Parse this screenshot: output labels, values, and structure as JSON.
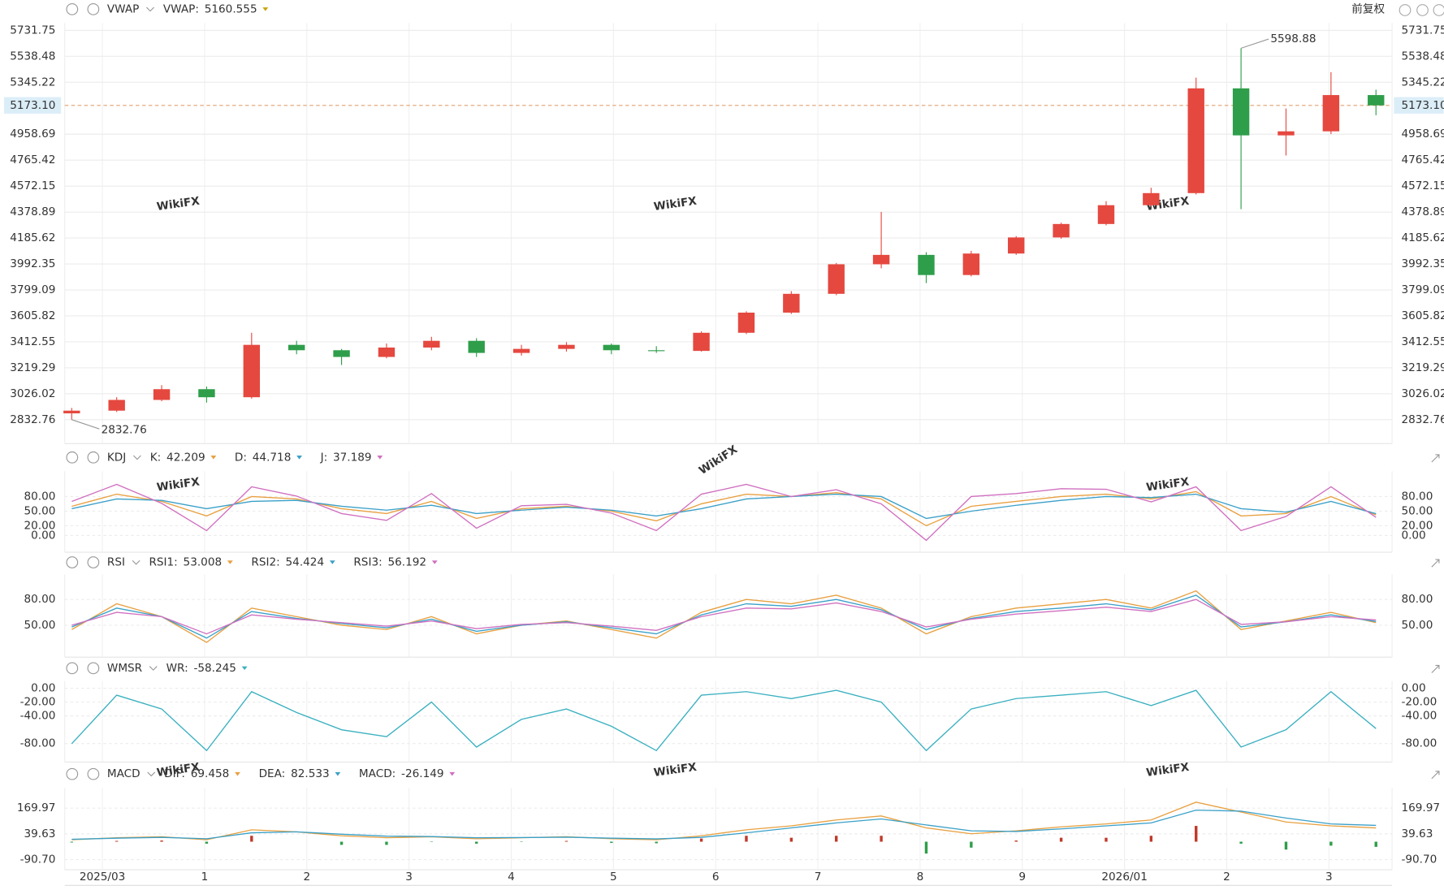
{
  "chart_data": [
    {
      "type": "candlestick",
      "title": "VWAP",
      "adjust_label": "前复权",
      "watermark": "WikiFX",
      "legend": [
        {
          "name": "VWAP:",
          "value": 5160.555,
          "color": "#c9a400"
        }
      ],
      "x": [
        -0.3,
        0.14,
        0.58,
        1.02,
        1.46,
        1.9,
        2.34,
        2.78,
        3.22,
        3.66,
        4.1,
        4.54,
        4.98,
        5.42,
        5.86,
        6.3,
        6.74,
        7.18,
        7.62,
        8.06,
        8.5,
        8.94,
        9.38,
        9.82,
        10.26,
        10.7,
        11.14,
        11.58,
        12.02,
        12.46
      ],
      "open": [
        2880,
        2900,
        2980,
        3060,
        3000,
        3390,
        3350,
        3300,
        3370,
        3420,
        3330,
        3360,
        3390,
        3350,
        3345,
        3480,
        3630,
        3770,
        3990,
        4060,
        3910,
        4070,
        4190,
        4290,
        4430,
        4520,
        5300,
        4950,
        4980,
        5250
      ],
      "high": [
        2920,
        3000,
        3090,
        3080,
        3480,
        3420,
        3360,
        3400,
        3450,
        3440,
        3390,
        3410,
        3400,
        3380,
        3490,
        3640,
        3790,
        4000,
        4380,
        4080,
        4090,
        4200,
        4300,
        4460,
        4560,
        5380,
        5598.88,
        5150,
        5420,
        5290
      ],
      "low": [
        2832.76,
        2890,
        2970,
        2960,
        2990,
        3320,
        3240,
        3290,
        3350,
        3300,
        3310,
        3340,
        3320,
        3330,
        3340,
        3470,
        3620,
        3760,
        3960,
        3850,
        3900,
        4060,
        4180,
        4280,
        4420,
        4510,
        4400,
        4800,
        4960,
        5100
      ],
      "close": [
        2900,
        2980,
        3060,
        3000,
        3390,
        3350,
        3300,
        3370,
        3420,
        3330,
        3360,
        3390,
        3350,
        3345,
        3480,
        3630,
        3770,
        3990,
        4060,
        3910,
        4070,
        4190,
        4290,
        4430,
        4520,
        5300,
        4950,
        4980,
        5250,
        5173.1
      ],
      "up_color": "#e5483f",
      "down_color": "#2e9e4a",
      "last_price": {
        "value": 5173.1,
        "label": "5173.10"
      },
      "ylim": [
        2832.76,
        5731.75
      ],
      "yticks": [
        2832.76,
        3026.02,
        3219.29,
        3412.55,
        3605.82,
        3799.09,
        3992.35,
        4185.62,
        4378.89,
        4572.15,
        4765.42,
        4958.69,
        5345.22,
        5538.48,
        5731.75
      ]
    },
    {
      "type": "line",
      "title": "KDJ",
      "ylim": [
        -25,
        115
      ],
      "yticks": [
        {
          "value": 0,
          "label": "0.00"
        },
        {
          "value": 20,
          "label": "20.00"
        },
        {
          "value": 50,
          "label": "50.00"
        },
        {
          "value": 80,
          "label": "80.00"
        }
      ],
      "series": [
        {
          "name": "K:",
          "color": "#e8a040",
          "values": [
            60,
            85,
            70,
            40,
            80,
            75,
            55,
            45,
            70,
            35,
            55,
            60,
            50,
            30,
            65,
            85,
            80,
            88,
            75,
            20,
            60,
            70,
            80,
            85,
            75,
            90,
            40,
            45,
            80,
            42.209
          ]
        },
        {
          "name": "D:",
          "color": "#3aa0c8",
          "values": [
            55,
            75,
            72,
            55,
            70,
            72,
            60,
            52,
            62,
            45,
            52,
            58,
            52,
            40,
            55,
            75,
            80,
            85,
            80,
            35,
            50,
            62,
            72,
            80,
            78,
            85,
            55,
            48,
            70,
            44.718
          ]
        },
        {
          "name": "J:",
          "color": "#d070c0",
          "values": [
            70,
            105,
            66,
            10,
            100,
            81,
            45,
            31,
            86,
            15,
            61,
            64,
            46,
            10,
            85,
            105,
            80,
            94,
            65,
            -10,
            80,
            86,
            96,
            95,
            69,
            100,
            10,
            39,
            100,
            37.189
          ]
        }
      ]
    },
    {
      "type": "line",
      "title": "RSI",
      "ylim": [
        15,
        105
      ],
      "yticks": [
        {
          "value": 50,
          "label": "50.00"
        },
        {
          "value": 80,
          "label": "80.00"
        }
      ],
      "series": [
        {
          "name": "RSI1:",
          "color": "#e8a040",
          "values": [
            45,
            75,
            60,
            30,
            70,
            60,
            50,
            45,
            60,
            40,
            50,
            55,
            45,
            35,
            65,
            80,
            75,
            85,
            70,
            40,
            60,
            70,
            75,
            80,
            70,
            90,
            45,
            55,
            65,
            53.008
          ]
        },
        {
          "name": "RSI2:",
          "color": "#3aa0c8",
          "values": [
            48,
            70,
            60,
            35,
            66,
            58,
            52,
            47,
            57,
            43,
            50,
            54,
            47,
            40,
            62,
            75,
            72,
            80,
            68,
            45,
            58,
            66,
            70,
            75,
            68,
            85,
            48,
            54,
            62,
            54.424
          ]
        },
        {
          "name": "RSI3:",
          "color": "#d070c0",
          "values": [
            50,
            65,
            60,
            40,
            62,
            57,
            53,
            49,
            55,
            46,
            51,
            53,
            49,
            44,
            60,
            70,
            69,
            76,
            66,
            48,
            57,
            63,
            67,
            71,
            66,
            80,
            51,
            54,
            60,
            56.192
          ]
        }
      ]
    },
    {
      "type": "line",
      "title": "WMSR",
      "ylim": [
        -100,
        5
      ],
      "yticks": [
        {
          "value": -80,
          "label": "-80.00"
        },
        {
          "value": -40,
          "label": "-40.00"
        },
        {
          "value": -20,
          "label": "-20.00"
        },
        {
          "value": 0,
          "label": "0.00"
        }
      ],
      "series": [
        {
          "name": "WR:",
          "color": "#3ab0c0",
          "values": [
            -80,
            -10,
            -30,
            -90,
            -5,
            -35,
            -60,
            -70,
            -20,
            -85,
            -45,
            -30,
            -55,
            -90,
            -10,
            -5,
            -15,
            -3,
            -20,
            -90,
            -30,
            -15,
            -10,
            -5,
            -25,
            -3,
            -85,
            -60,
            -5,
            -58.245
          ]
        }
      ]
    },
    {
      "type": "line",
      "title": "MACD",
      "ylim": [
        -142,
        254
      ],
      "yticks": [
        {
          "value": -90.7,
          "label": "-90.70"
        },
        39.63,
        169.97
      ],
      "xlim": [
        -0.35,
        12.6
      ],
      "xticks": [
        {
          "value": 0,
          "label": "2025/03"
        },
        1,
        2,
        3,
        4,
        5,
        6,
        7,
        8,
        9,
        {
          "value": 10,
          "label": "2026/01"
        },
        {
          "value": 11,
          "label": "2"
        },
        {
          "value": 12,
          "label": "3"
        }
      ],
      "series": [
        {
          "name": "DIF:",
          "color": "#e8a040",
          "values": [
            10,
            20,
            25,
            10,
            60,
            50,
            30,
            20,
            25,
            15,
            20,
            25,
            15,
            10,
            30,
            60,
            80,
            110,
            130,
            70,
            40,
            55,
            75,
            90,
            110,
            200,
            150,
            100,
            80,
            69.458
          ]
        },
        {
          "name": "DEA:",
          "color": "#3aa0c8",
          "values": [
            12,
            18,
            22,
            15,
            45,
            50,
            38,
            28,
            26,
            20,
            21,
            23,
            18,
            14,
            22,
            45,
            70,
            95,
            115,
            85,
            55,
            52,
            65,
            80,
            95,
            160,
            155,
            120,
            90,
            82.533
          ]
        },
        {
          "name": "MACD:",
          "type": "bar",
          "color": "#d070c0",
          "up_color": "#c0392b",
          "down_color": "#2e9e4a",
          "values": [
            -4,
            4,
            6,
            -10,
            30,
            0,
            -16,
            -16,
            -2,
            -10,
            -2,
            4,
            -6,
            -8,
            16,
            30,
            20,
            30,
            30,
            -60,
            -30,
            6,
            20,
            20,
            30,
            80,
            -10,
            -40,
            -20,
            -26.149
          ]
        }
      ]
    }
  ]
}
